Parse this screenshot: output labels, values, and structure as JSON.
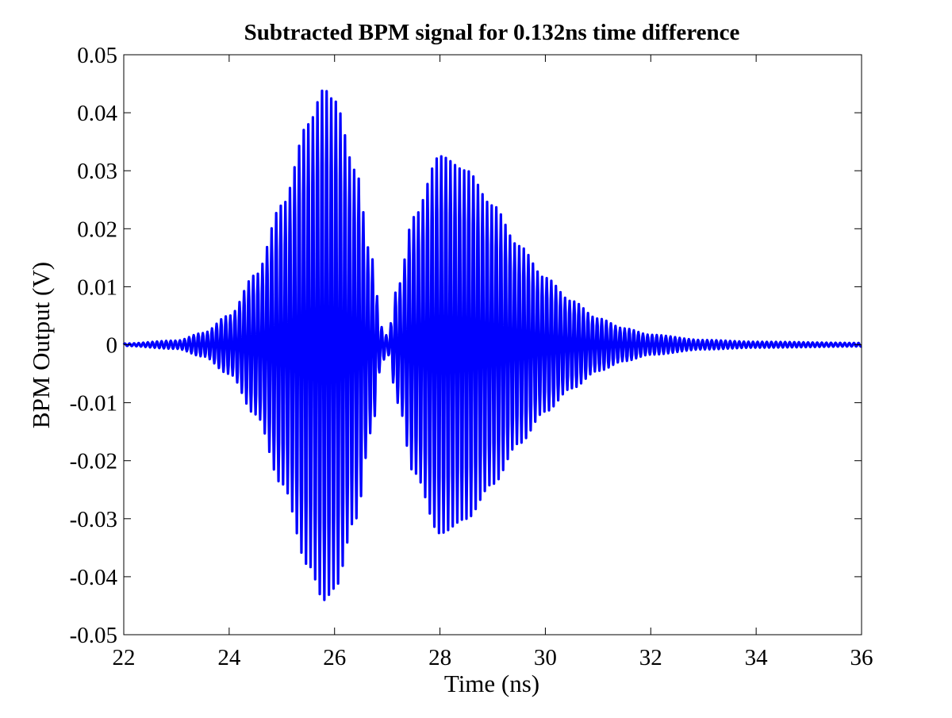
{
  "chart_data": {
    "type": "line",
    "title": "Subtracted BPM signal for 0.132ns time difference",
    "xlabel": "Time (ns)",
    "ylabel": "BPM Output (V)",
    "xlim": [
      22,
      36
    ],
    "ylim": [
      -0.05,
      0.05
    ],
    "xticks": [
      22,
      24,
      26,
      28,
      30,
      32,
      34,
      36
    ],
    "yticks": [
      -0.05,
      -0.04,
      -0.03,
      -0.02,
      -0.01,
      0,
      0.01,
      0.02,
      0.03,
      0.04,
      0.05
    ],
    "xtick_labels": [
      "22",
      "24",
      "26",
      "28",
      "30",
      "32",
      "34",
      "36"
    ],
    "ytick_labels": [
      "-0.05",
      "-0.04",
      "-0.03",
      "-0.02",
      "-0.01",
      "0",
      "0.01",
      "0.02",
      "0.03",
      "0.04",
      "0.05"
    ],
    "grid": false,
    "legend": "none",
    "line_color": "#0000ff",
    "series": [
      {
        "envelope_points": [
          {
            "x": 22.0,
            "amplitude": 0.0002
          },
          {
            "x": 23.0,
            "amplitude": 0.0007
          },
          {
            "x": 23.5,
            "amplitude": 0.002
          },
          {
            "x": 24.0,
            "amplitude": 0.005
          },
          {
            "x": 24.5,
            "amplitude": 0.012
          },
          {
            "x": 25.0,
            "amplitude": 0.024
          },
          {
            "x": 25.5,
            "amplitude": 0.038
          },
          {
            "x": 25.8,
            "amplitude": 0.044
          },
          {
            "x": 26.0,
            "amplitude": 0.042
          },
          {
            "x": 26.4,
            "amplitude": 0.03
          },
          {
            "x": 26.7,
            "amplitude": 0.015
          },
          {
            "x": 26.9,
            "amplitude": 0.003
          },
          {
            "x": 27.0,
            "amplitude": 0.0015
          },
          {
            "x": 27.2,
            "amplitude": 0.01
          },
          {
            "x": 27.5,
            "amplitude": 0.022
          },
          {
            "x": 28.0,
            "amplitude": 0.0325
          },
          {
            "x": 28.5,
            "amplitude": 0.03
          },
          {
            "x": 29.0,
            "amplitude": 0.024
          },
          {
            "x": 29.5,
            "amplitude": 0.017
          },
          {
            "x": 30.0,
            "amplitude": 0.0115
          },
          {
            "x": 30.5,
            "amplitude": 0.0075
          },
          {
            "x": 31.0,
            "amplitude": 0.0045
          },
          {
            "x": 31.5,
            "amplitude": 0.0028
          },
          {
            "x": 32.0,
            "amplitude": 0.0017
          },
          {
            "x": 33.0,
            "amplitude": 0.0008
          },
          {
            "x": 34.0,
            "amplitude": 0.0005
          },
          {
            "x": 36.0,
            "amplitude": 0.0003
          }
        ],
        "oscillation_period_ns": 0.087
      }
    ]
  }
}
